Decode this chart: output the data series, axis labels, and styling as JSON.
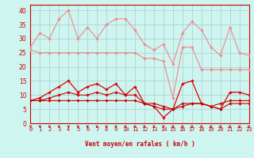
{
  "x": [
    0,
    1,
    2,
    3,
    4,
    5,
    6,
    7,
    8,
    9,
    10,
    11,
    12,
    13,
    14,
    15,
    16,
    17,
    18,
    19,
    20,
    21,
    22,
    23
  ],
  "series": [
    {
      "name": "rafales_max",
      "color": "#f08888",
      "linewidth": 0.8,
      "marker": "D",
      "markersize": 1.8,
      "values": [
        27,
        32,
        30,
        37,
        40,
        30,
        34,
        30,
        35,
        37,
        37,
        33,
        28,
        26,
        28,
        21,
        32,
        36,
        33,
        27,
        24,
        34,
        25,
        24
      ]
    },
    {
      "name": "rafales_mid",
      "color": "#f08888",
      "linewidth": 0.8,
      "marker": "D",
      "markersize": 1.8,
      "values": [
        26,
        25,
        25,
        25,
        25,
        25,
        25,
        25,
        25,
        25,
        25,
        25,
        23,
        23,
        22,
        9,
        27,
        27,
        19,
        19,
        19,
        19,
        19,
        19
      ]
    },
    {
      "name": "vent_moyen",
      "color": "#dd0000",
      "linewidth": 0.9,
      "marker": "D",
      "markersize": 1.8,
      "values": [
        8,
        9,
        11,
        13,
        15,
        11,
        13,
        14,
        12,
        14,
        10,
        13,
        7,
        6,
        2,
        5,
        14,
        15,
        7,
        6,
        5,
        11,
        11,
        10
      ]
    },
    {
      "name": "vent_min1",
      "color": "#cc0000",
      "linewidth": 0.8,
      "marker": "D",
      "markersize": 1.8,
      "values": [
        8,
        8,
        9,
        10,
        11,
        10,
        10,
        11,
        10,
        11,
        10,
        10,
        7,
        7,
        6,
        5,
        7,
        7,
        7,
        6,
        7,
        8,
        8,
        8
      ]
    },
    {
      "name": "vent_flat",
      "color": "#cc0000",
      "linewidth": 0.8,
      "marker": "D",
      "markersize": 1.8,
      "values": [
        8,
        8,
        8,
        8,
        8,
        8,
        8,
        8,
        8,
        8,
        8,
        8,
        7,
        6,
        5,
        5,
        6,
        7,
        7,
        6,
        5,
        7,
        7,
        7
      ]
    }
  ],
  "xlim": [
    0,
    23
  ],
  "ylim": [
    0,
    42
  ],
  "yticks": [
    0,
    5,
    10,
    15,
    20,
    25,
    30,
    35,
    40
  ],
  "xticks": [
    0,
    1,
    2,
    3,
    4,
    5,
    6,
    7,
    8,
    9,
    10,
    11,
    12,
    13,
    14,
    15,
    16,
    17,
    18,
    19,
    20,
    21,
    22,
    23
  ],
  "xlabel": "Vent moyen/en rafales ( km/h )",
  "background_color": "#cef5f0",
  "grid_color": "#aacccc",
  "arrow_color": "#cc0000",
  "tick_color": "#cc0000",
  "label_color": "#cc0000",
  "spine_color": "#cc0000"
}
